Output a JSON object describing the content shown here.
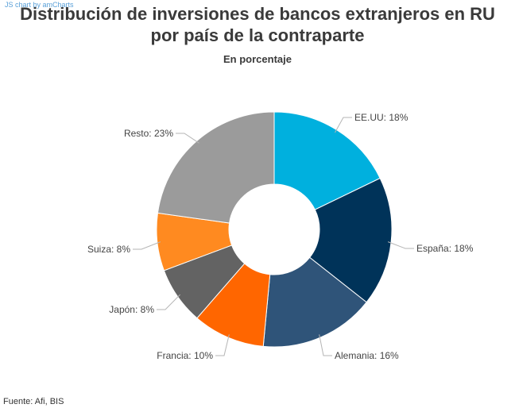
{
  "credit": "JS chart by amCharts",
  "title_line1": "Distribución de inversiones de bancos extranjeros en RU",
  "title_line2": "por país de la contraparte",
  "subtitle": "En porcentaje",
  "source": "Fuente: Afi, BIS",
  "chart_data": {
    "type": "pie",
    "variant": "donut",
    "title": "Distribución de inversiones de bancos extranjeros en RU por país de la contraparte",
    "subtitle": "En porcentaje",
    "categories": [
      "EE.UU",
      "España",
      "Alemania",
      "Francia",
      "Japón",
      "Suiza",
      "Resto"
    ],
    "values": [
      18,
      18,
      16,
      10,
      8,
      8,
      23
    ],
    "labels": [
      "EE.UU: 18%",
      "España: 18%",
      "Alemania: 16%",
      "Francia: 10%",
      "Japón: 8%",
      "Suiza: 8%",
      "Resto: 23%"
    ],
    "colors": [
      "#00b0de",
      "#003359",
      "#2f5479",
      "#ff6600",
      "#636363",
      "#ff8a20",
      "#9b9b9b"
    ],
    "legend": "none"
  }
}
